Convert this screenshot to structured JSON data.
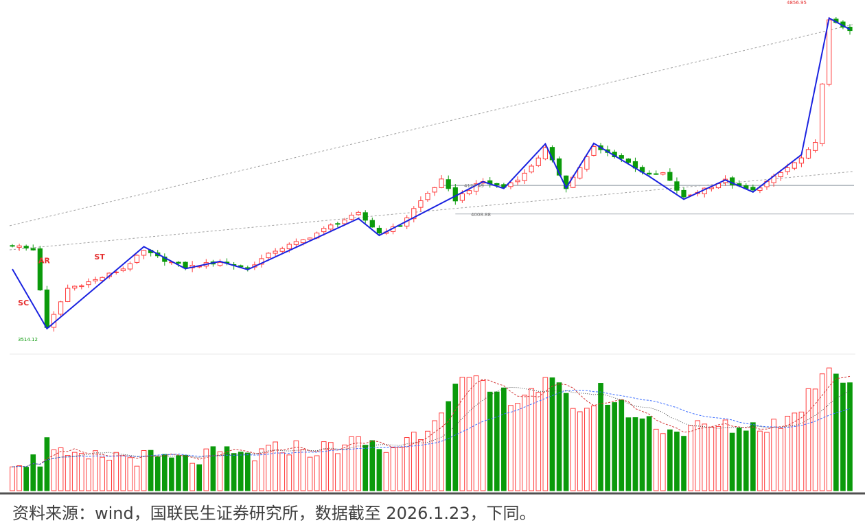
{
  "source_note": "资料来源：wind，国联民生证券研究所，数据截至 2026.1.23，下同。",
  "colors": {
    "up": "#ff3b3b",
    "down": "#0b9a0b",
    "zigzag": "#1a22e0",
    "annotation": "#e53030",
    "reference_line": "#aab0b8",
    "trend_line": "#a0a0a0",
    "ma_blue": "#3a6cff",
    "ma_red": "#d23232",
    "ma_dark": "#404040"
  },
  "chart_data": [
    {
      "type": "candlestick",
      "title": "",
      "y_range": [
        3450,
        4880
      ],
      "labels": {
        "low_value": "3514.12",
        "high_value": "4856.95",
        "level_upper": "4127.49",
        "level_lower": "4008.88"
      },
      "annotations": [
        {
          "text": "SC",
          "index": 2,
          "price": 3630
        },
        {
          "text": "AR",
          "index": 5,
          "price": 3805
        },
        {
          "text": "ST",
          "index": 13,
          "price": 3820
        }
      ],
      "horizontal_levels": [
        {
          "price": 4127.49,
          "from_index": 62
        },
        {
          "price": 4008.88,
          "from_index": 64
        }
      ],
      "trend_lines": [
        {
          "from": [
            0,
            3960
          ],
          "to": [
            121,
            4795
          ]
        },
        {
          "from": [
            0,
            3860
          ],
          "to": [
            121,
            4185
          ]
        }
      ],
      "zigzag_pivots": [
        [
          0,
          3780
        ],
        [
          5,
          3533
        ],
        [
          19,
          3873
        ],
        [
          25,
          3782
        ],
        [
          30,
          3812
        ],
        [
          34,
          3778
        ],
        [
          50,
          3990
        ],
        [
          53,
          3920
        ],
        [
          68,
          4143
        ],
        [
          71,
          4115
        ],
        [
          77,
          4300
        ],
        [
          80,
          4117
        ],
        [
          84,
          4302
        ],
        [
          92,
          4165
        ],
        [
          97,
          4070
        ],
        [
          103,
          4150
        ],
        [
          107,
          4100
        ],
        [
          114,
          4255
        ],
        [
          118,
          4822
        ],
        [
          121,
          4775
        ]
      ],
      "close_anchors": [
        [
          0,
          3880
        ],
        [
          3,
          3860
        ],
        [
          5,
          3533
        ],
        [
          8,
          3700
        ],
        [
          12,
          3735
        ],
        [
          16,
          3782
        ],
        [
          19,
          3855
        ],
        [
          22,
          3818
        ],
        [
          25,
          3788
        ],
        [
          30,
          3810
        ],
        [
          34,
          3785
        ],
        [
          38,
          3858
        ],
        [
          42,
          3900
        ],
        [
          46,
          3960
        ],
        [
          50,
          4010
        ],
        [
          53,
          3930
        ],
        [
          56,
          3960
        ],
        [
          58,
          4030
        ],
        [
          60,
          4095
        ],
        [
          62,
          4148
        ],
        [
          64,
          4068
        ],
        [
          66,
          4112
        ],
        [
          68,
          4143
        ],
        [
          71,
          4120
        ],
        [
          74,
          4175
        ],
        [
          77,
          4280
        ],
        [
          80,
          4120
        ],
        [
          84,
          4285
        ],
        [
          88,
          4240
        ],
        [
          92,
          4168
        ],
        [
          94,
          4178
        ],
        [
          97,
          4075
        ],
        [
          100,
          4115
        ],
        [
          103,
          4148
        ],
        [
          105,
          4120
        ],
        [
          107,
          4105
        ],
        [
          110,
          4160
        ],
        [
          114,
          4240
        ],
        [
          116,
          4300
        ],
        [
          118,
          4810
        ],
        [
          121,
          4775
        ]
      ],
      "candles": 122
    },
    {
      "type": "bar",
      "title": "",
      "description_values": "volume",
      "y_range": [
        0,
        100
      ],
      "bar_count": 122,
      "moving_average_series": [
        "ma_short",
        "ma_long"
      ],
      "volume_anchors": [
        [
          0,
          24
        ],
        [
          4,
          22
        ],
        [
          5,
          44
        ],
        [
          6,
          28
        ],
        [
          9,
          22
        ],
        [
          15,
          26
        ],
        [
          20,
          24
        ],
        [
          25,
          22
        ],
        [
          30,
          27
        ],
        [
          35,
          26
        ],
        [
          40,
          33
        ],
        [
          44,
          30
        ],
        [
          48,
          35
        ],
        [
          51,
          36
        ],
        [
          54,
          30
        ],
        [
          57,
          38
        ],
        [
          60,
          48
        ],
        [
          62,
          65
        ],
        [
          64,
          77
        ],
        [
          66,
          82
        ],
        [
          68,
          76
        ],
        [
          70,
          72
        ],
        [
          73,
          70
        ],
        [
          75,
          76
        ],
        [
          78,
          80
        ],
        [
          80,
          68
        ],
        [
          83,
          60
        ],
        [
          85,
          74
        ],
        [
          87,
          66
        ],
        [
          90,
          56
        ],
        [
          92,
          52
        ],
        [
          96,
          44
        ],
        [
          100,
          48
        ],
        [
          103,
          47
        ],
        [
          107,
          48
        ],
        [
          110,
          50
        ],
        [
          113,
          56
        ],
        [
          115,
          72
        ],
        [
          117,
          90
        ],
        [
          118,
          94
        ],
        [
          120,
          86
        ],
        [
          121,
          80
        ]
      ]
    }
  ]
}
